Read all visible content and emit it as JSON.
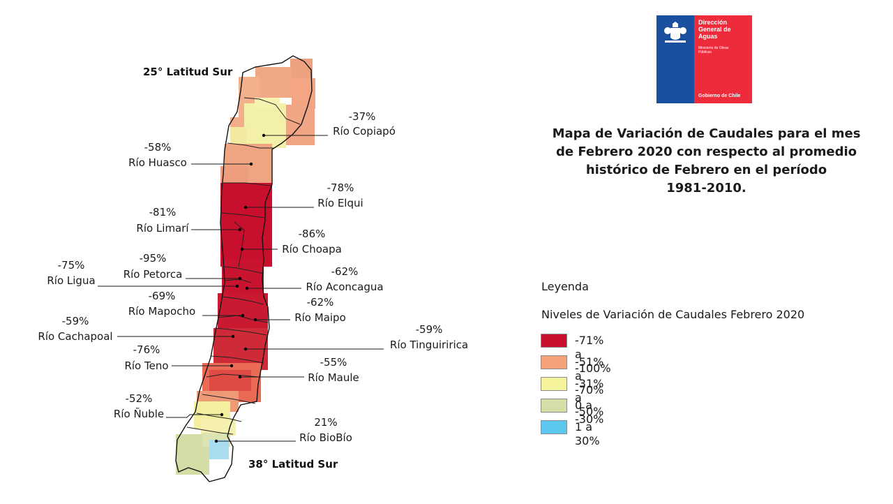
{
  "title_lines": [
    "Mapa de Variación de Caudales para el mes",
    "de Febrero 2020 con respecto al promedio",
    "histórico de Febrero en el período",
    "1981-2010."
  ],
  "logo": {
    "institution_lines": [
      "Dirección",
      "General de",
      "Aguas"
    ],
    "ministry_lines": [
      "Ministerio de Obras",
      "Públicas"
    ],
    "government": "Gobierno de Chile",
    "blue": "#1b4fa0",
    "red": "#ee2b3b"
  },
  "map": {
    "north_label": "25° Latitud Sur",
    "south_label": "38° Latitud Sur",
    "rivers": [
      {
        "name": "Río Copiapó",
        "value": "-37%"
      },
      {
        "name": "Río Huasco",
        "value": "-58%"
      },
      {
        "name": "Río Elqui",
        "value": "-78%"
      },
      {
        "name": "Río Limarí",
        "value": "-81%"
      },
      {
        "name": "Río Choapa",
        "value": "-86%"
      },
      {
        "name": "Río Petorca",
        "value": "-95%"
      },
      {
        "name": "Río Ligua",
        "value": "-75%"
      },
      {
        "name": "Río Aconcagua",
        "value": "-62%"
      },
      {
        "name": "Río Mapocho",
        "value": "-69%"
      },
      {
        "name": "Río Maipo",
        "value": "-62%"
      },
      {
        "name": "Río Cachapoal",
        "value": "-59%"
      },
      {
        "name": "Río Tinguiririca",
        "value": "-59%"
      },
      {
        "name": "Río Teno",
        "value": "-76%"
      },
      {
        "name": "Río Maule",
        "value": "-55%"
      },
      {
        "name": "Río Ñuble",
        "value": "-52%"
      },
      {
        "name": "Río BioBío",
        "value": "21%"
      }
    ]
  },
  "legend": {
    "heading": "Leyenda",
    "subtitle": "Niveles de Variación de Caudales Febrero 2020",
    "items": [
      {
        "label": "-71% a -100%",
        "color": "#c8102e"
      },
      {
        "label": "-51% a -70%",
        "color": "#f4a07a"
      },
      {
        "label": "-31% a -50%",
        "color": "#f5f29c"
      },
      {
        "label": "0 a -30%",
        "color": "#d4dfa8"
      },
      {
        "label": "1 a 30%",
        "color": "#5cc8f0"
      }
    ]
  }
}
